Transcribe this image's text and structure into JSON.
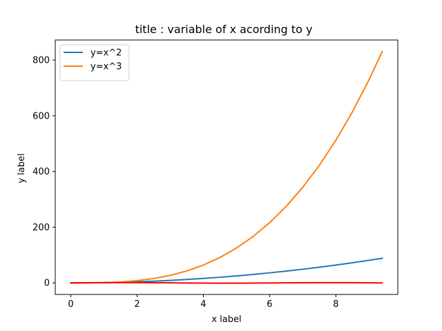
{
  "chart_data": {
    "type": "line",
    "title": "title : variable of x acording to y",
    "xlabel": "x label",
    "ylabel": "y label",
    "xlim": [
      -0.47,
      9.87
    ],
    "ylim": [
      -41.5,
      872
    ],
    "xticks": [
      0,
      2,
      4,
      6,
      8
    ],
    "yticks": [
      0,
      200,
      400,
      600,
      800
    ],
    "grid": false,
    "legend": "top-left",
    "series": [
      {
        "name": "y=x^2",
        "color": "#1f77b4",
        "x": [
          0,
          0.5,
          1,
          1.5,
          2,
          2.5,
          3,
          3.5,
          4,
          4.5,
          5,
          5.5,
          6,
          6.5,
          7,
          7.5,
          8,
          8.5,
          9,
          9.4
        ],
        "y": [
          0,
          0.25,
          1,
          2.25,
          4,
          6.25,
          9,
          12.25,
          16,
          20.25,
          25,
          30.25,
          36,
          42.25,
          49,
          56.25,
          64,
          72.25,
          81,
          88.36
        ]
      },
      {
        "name": "y=x^3",
        "color": "#ff7f0e",
        "x": [
          0,
          0.5,
          1,
          1.5,
          2,
          2.5,
          3,
          3.5,
          4,
          4.5,
          5,
          5.5,
          6,
          6.5,
          7,
          7.5,
          8,
          8.5,
          9,
          9.4
        ],
        "y": [
          0,
          0.125,
          1,
          3.375,
          8,
          15.625,
          27,
          42.875,
          64,
          91.125,
          125,
          166.375,
          216,
          274.625,
          343,
          421.875,
          512,
          614.125,
          729,
          830.58
        ]
      },
      {
        "name": "",
        "color": "#ff0000",
        "x": [
          0,
          0.5,
          1,
          1.5,
          2,
          2.5,
          3,
          3.5,
          4,
          4.5,
          5,
          5.5,
          6,
          6.5,
          7,
          7.5,
          8,
          8.5,
          9,
          9.4
        ],
        "y": [
          0,
          0.48,
          0.84,
          1.0,
          0.91,
          0.6,
          0.14,
          -0.35,
          -0.76,
          -0.98,
          -0.96,
          -0.71,
          -0.28,
          0.22,
          0.66,
          0.94,
          0.99,
          0.8,
          0.41,
          0.03
        ]
      }
    ]
  }
}
